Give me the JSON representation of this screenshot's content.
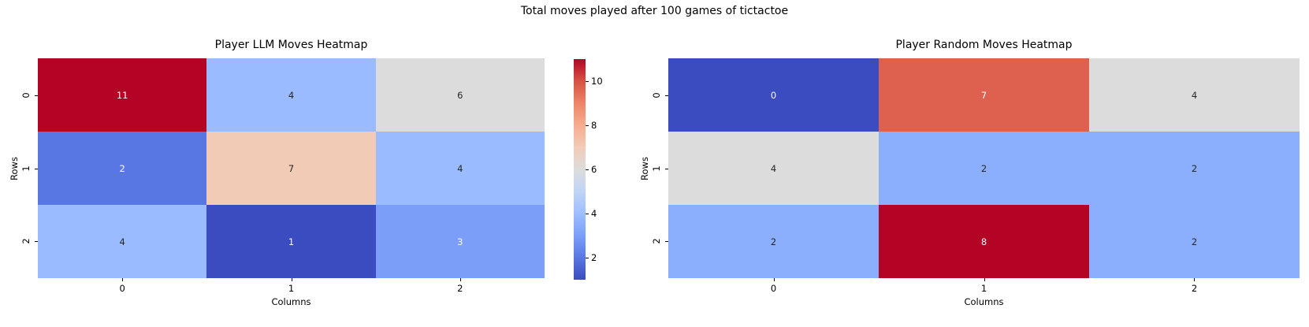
{
  "figure": {
    "suptitle": "Total moves played after 100 games of tictactoe",
    "background": "#ffffff"
  },
  "chart_data": [
    {
      "type": "heatmap",
      "title": "Player LLM Moves Heatmap",
      "xlabel": "Columns",
      "ylabel": "Rows",
      "x_tick_labels": [
        "0",
        "1",
        "2"
      ],
      "y_tick_labels": [
        "0",
        "1",
        "2"
      ],
      "values": [
        [
          11,
          4,
          6
        ],
        [
          2,
          7,
          4
        ],
        [
          4,
          1,
          3
        ]
      ],
      "vmin": 1,
      "vmax": 11,
      "colormap": "coolwarm",
      "annotated": true,
      "cell_colors": [
        [
          "#b40426",
          "#9abbff",
          "#dcdcdc"
        ],
        [
          "#5977e3",
          "#f1cbb5",
          "#9abbff"
        ],
        [
          "#9abbff",
          "#3b4cc0",
          "#7b9ff9"
        ]
      ],
      "text_colors": [
        [
          "#ffffff",
          "#262626",
          "#262626"
        ],
        [
          "#ffffff",
          "#262626",
          "#262626"
        ],
        [
          "#262626",
          "#ffffff",
          "#ffffff"
        ]
      ],
      "colorbar": {
        "position": "right",
        "vmin": 1,
        "vmax": 11,
        "ticks": [
          10,
          8,
          6,
          4,
          2
        ],
        "gradient_top_to_bottom": [
          "#b40426",
          "#d65244",
          "#ee8468",
          "#f7ac8e",
          "#f2cbb7",
          "#dddcdc",
          "#c0d4f5",
          "#9ebeff",
          "#7b9ff9",
          "#5977e3",
          "#3b4cc0"
        ]
      }
    },
    {
      "type": "heatmap",
      "title": "Player Random Moves Heatmap",
      "xlabel": "Columns",
      "ylabel": "Rows",
      "x_tick_labels": [
        "0",
        "1",
        "2"
      ],
      "y_tick_labels": [
        "0",
        "1",
        "2"
      ],
      "values": [
        [
          0,
          7,
          4
        ],
        [
          4,
          2,
          2
        ],
        [
          2,
          8,
          2
        ]
      ],
      "vmin": 0,
      "vmax": 8,
      "colormap": "coolwarm",
      "annotated": true,
      "cell_colors": [
        [
          "#3b4cc0",
          "#de6150",
          "#dcdcdc"
        ],
        [
          "#dcdcdc",
          "#8caffd",
          "#8caffd"
        ],
        [
          "#8caffd",
          "#b40426",
          "#8caffd"
        ]
      ],
      "text_colors": [
        [
          "#ffffff",
          "#ffffff",
          "#262626"
        ],
        [
          "#262626",
          "#262626",
          "#262626"
        ],
        [
          "#262626",
          "#ffffff",
          "#262626"
        ]
      ],
      "colorbar": null
    }
  ]
}
